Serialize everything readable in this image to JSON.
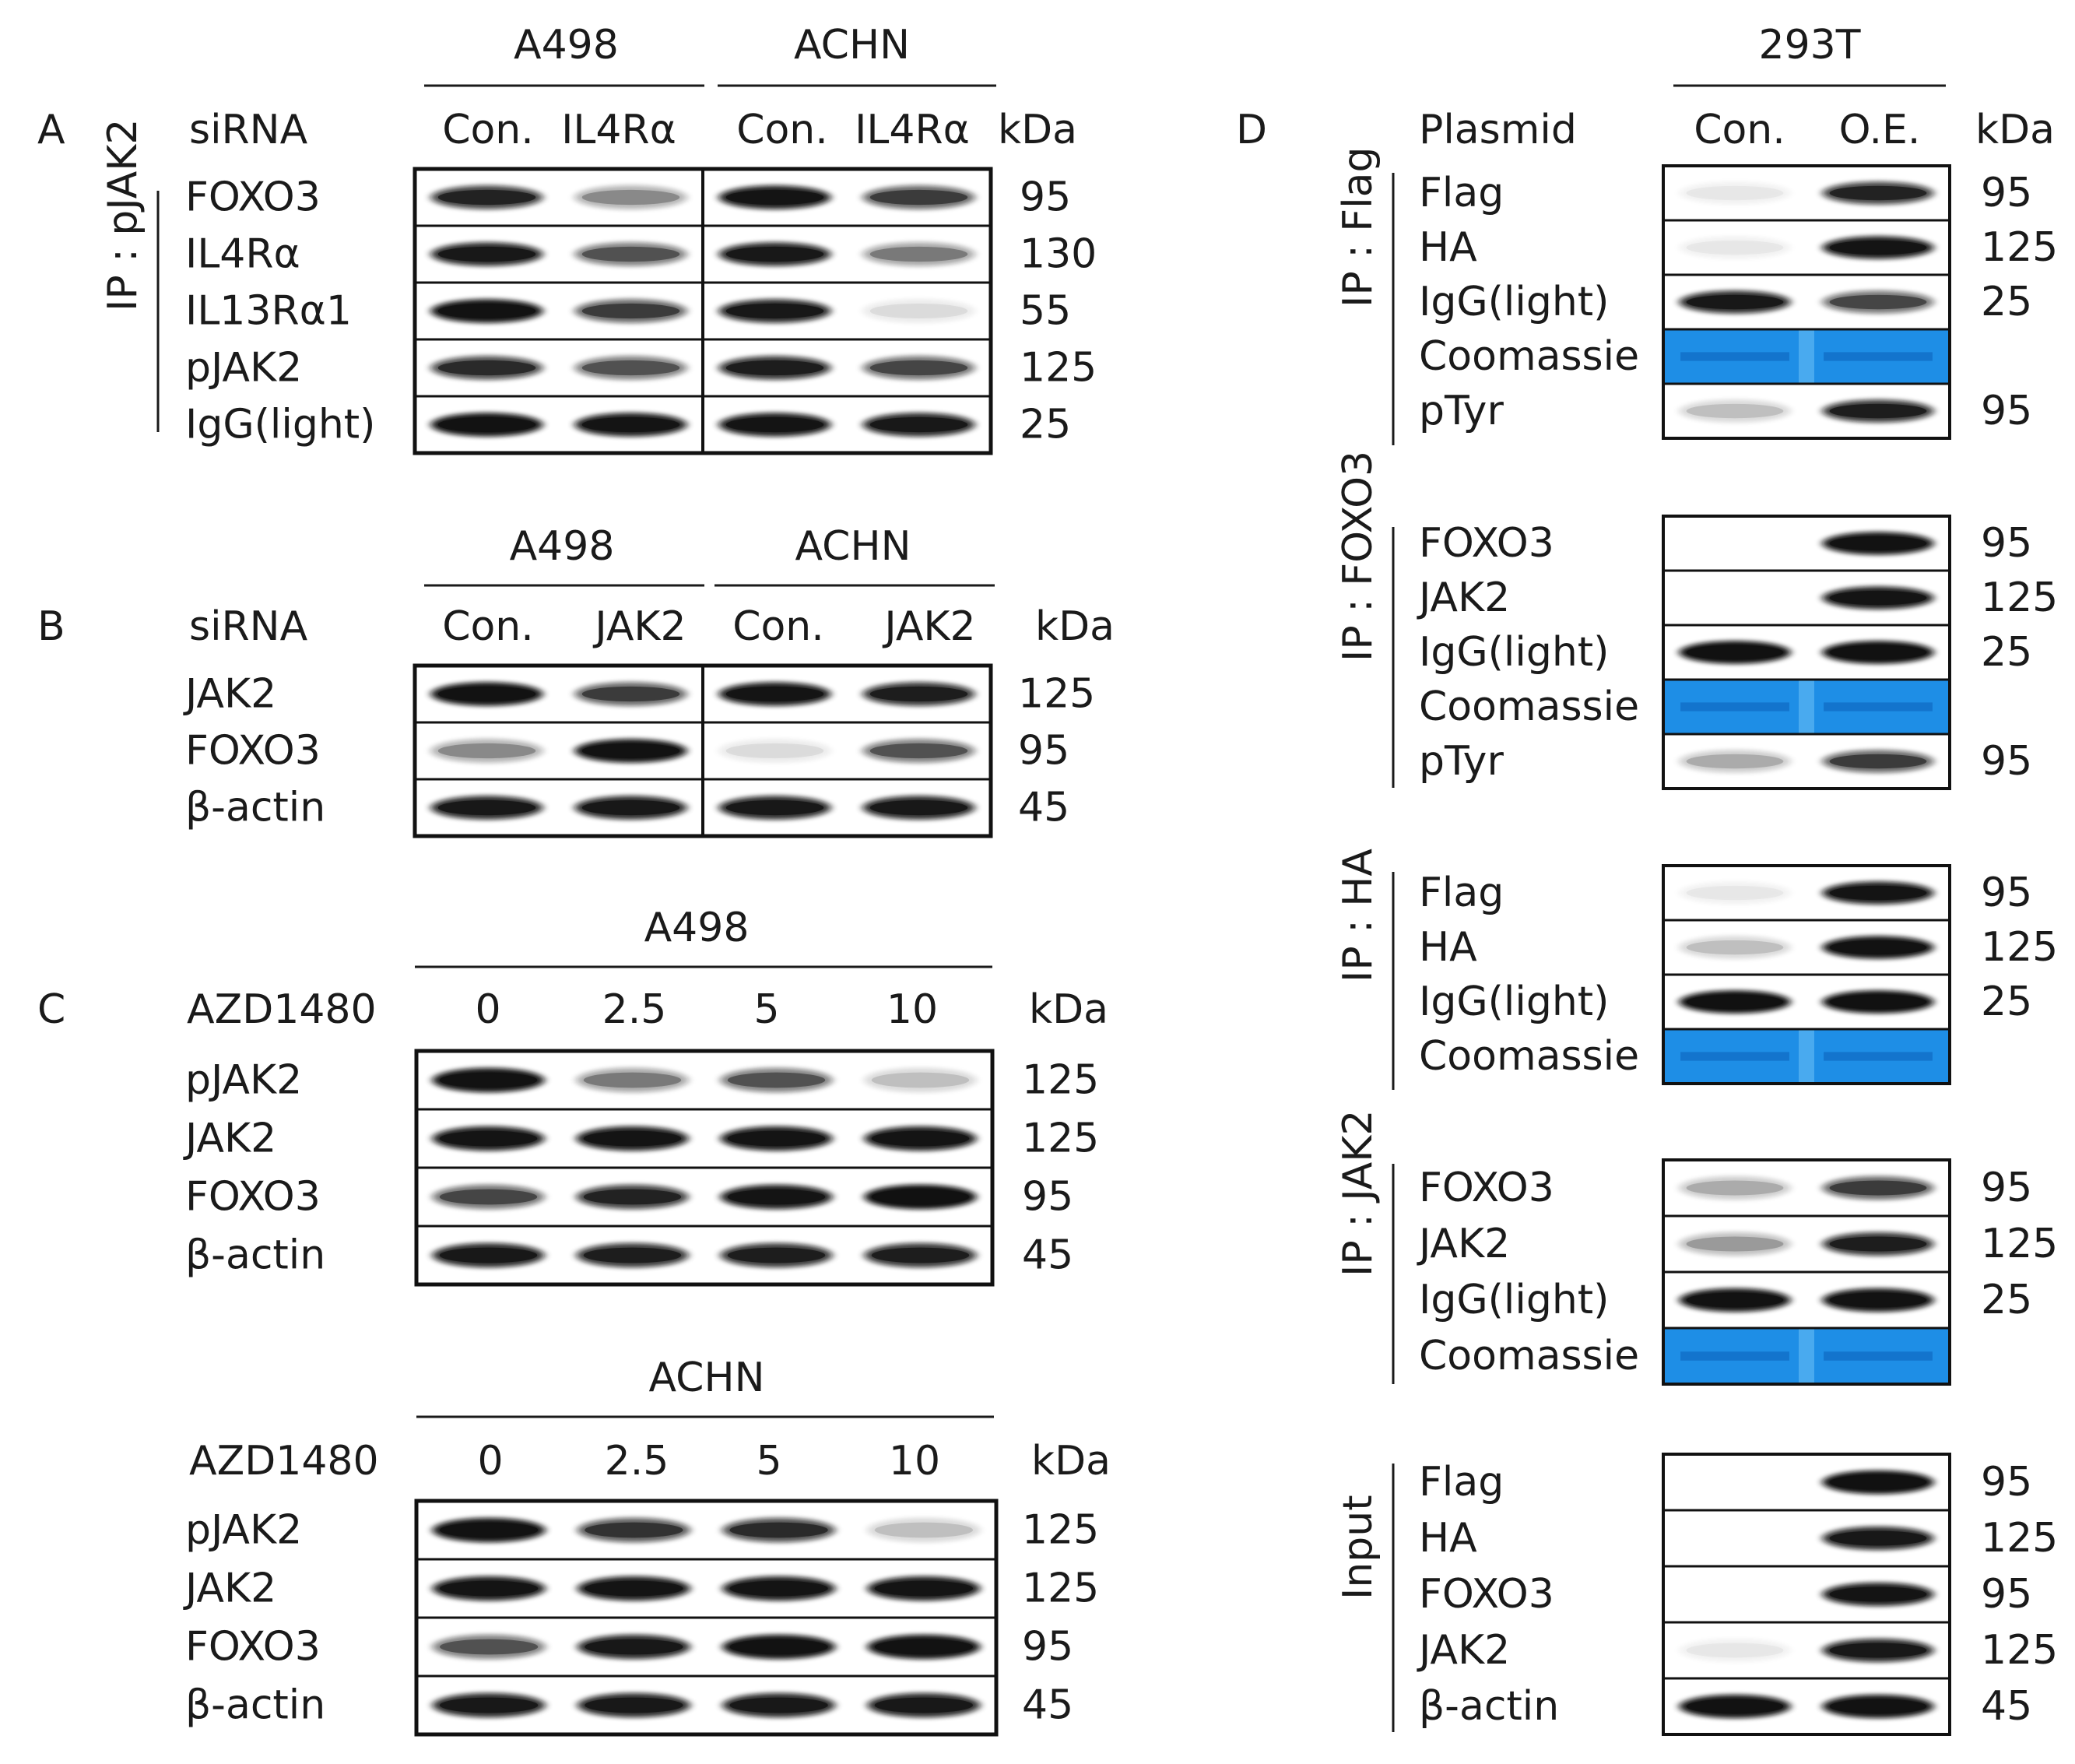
{
  "panels": {
    "A": {
      "letter": "A",
      "cells": [
        "A498",
        "ACHN"
      ],
      "treatment_label": "siRNA",
      "lanes": [
        "Con.",
        "IL4Rα",
        "Con.",
        "IL4Rα"
      ],
      "kda_header": "kDa",
      "ip_label": "IP : pJAK2",
      "rows": [
        {
          "label": "FOXO3",
          "kda": "95",
          "bands": [
            0.75,
            0.3,
            0.9,
            0.6
          ]
        },
        {
          "label": "IL4Rα",
          "kda": "130",
          "bands": [
            0.85,
            0.5,
            0.85,
            0.35
          ]
        },
        {
          "label": "IL13Rα1",
          "kda": "55",
          "bands": [
            0.95,
            0.6,
            0.85,
            0.08
          ]
        },
        {
          "label": "pJAK2",
          "kda": "125",
          "bands": [
            0.7,
            0.5,
            0.8,
            0.55
          ]
        },
        {
          "label": "IgG(light)",
          "kda": "25",
          "bands": [
            0.95,
            0.9,
            0.9,
            0.85
          ]
        }
      ]
    },
    "B": {
      "letter": "B",
      "cells": [
        "A498",
        "ACHN"
      ],
      "treatment_label": "siRNA",
      "lanes": [
        "Con.",
        "JAK2",
        "Con.",
        "JAK2"
      ],
      "kda_header": "kDa",
      "rows": [
        {
          "label": "JAK2",
          "kda": "125",
          "bands": [
            0.95,
            0.6,
            0.9,
            0.8
          ]
        },
        {
          "label": "FOXO3",
          "kda": "95",
          "bands": [
            0.3,
            0.95,
            0.08,
            0.5
          ]
        },
        {
          "label": "β-actin",
          "kda": "45",
          "bands": [
            0.85,
            0.85,
            0.85,
            0.85
          ]
        }
      ]
    },
    "C": {
      "letter": "C",
      "treatment_label": "AZD1480",
      "kda_header": "kDa",
      "blots": [
        {
          "cell": "A498",
          "lanes": [
            "0",
            "2.5",
            "5",
            "10"
          ],
          "rows": [
            {
              "label": "pJAK2",
              "kda": "125",
              "bands": [
                0.95,
                0.35,
                0.5,
                0.15
              ]
            },
            {
              "label": "JAK2",
              "kda": "125",
              "bands": [
                0.9,
                0.9,
                0.9,
                0.9
              ]
            },
            {
              "label": "FOXO3",
              "kda": "95",
              "bands": [
                0.55,
                0.75,
                0.9,
                0.98
              ]
            },
            {
              "label": "β-actin",
              "kda": "45",
              "bands": [
                0.85,
                0.8,
                0.8,
                0.8
              ]
            }
          ]
        },
        {
          "cell": "ACHN",
          "lanes": [
            "0",
            "2.5",
            "5",
            "10"
          ],
          "rows": [
            {
              "label": "pJAK2",
              "kda": "125",
              "bands": [
                0.95,
                0.65,
                0.7,
                0.15
              ]
            },
            {
              "label": "JAK2",
              "kda": "125",
              "bands": [
                0.9,
                0.9,
                0.9,
                0.9
              ]
            },
            {
              "label": "FOXO3",
              "kda": "95",
              "bands": [
                0.5,
                0.85,
                0.95,
                0.95
              ]
            },
            {
              "label": "β-actin",
              "kda": "45",
              "bands": [
                0.85,
                0.85,
                0.85,
                0.85
              ]
            }
          ]
        }
      ]
    },
    "D": {
      "letter": "D",
      "cell": "293T",
      "treatment_label": "Plasmid",
      "lanes": [
        "Con.",
        "O.E."
      ],
      "kda_header": "kDa",
      "blocks": [
        {
          "side_label": "IP : Flag",
          "rows": [
            {
              "label": "Flag",
              "kda": "95",
              "bands": [
                0.05,
                0.75
              ]
            },
            {
              "label": "HA",
              "kda": "125",
              "bands": [
                0.05,
                0.9
              ]
            },
            {
              "label": "IgG(light)",
              "kda": "25",
              "bands": [
                0.85,
                0.55
              ]
            },
            {
              "label": "Coomassie",
              "kda": "",
              "coomassie": true
            },
            {
              "label": "pTyr",
              "kda": "95",
              "bands": [
                0.15,
                0.8
              ]
            }
          ]
        },
        {
          "side_label": "IP : FOXO3",
          "rows": [
            {
              "label": "FOXO3",
              "kda": "95",
              "bands": [
                0.0,
                0.95
              ]
            },
            {
              "label": "JAK2",
              "kda": "125",
              "bands": [
                0.0,
                0.9
              ]
            },
            {
              "label": "IgG(light)",
              "kda": "25",
              "bands": [
                0.98,
                0.98
              ]
            },
            {
              "label": "Coomassie",
              "kda": "",
              "coomassie": true
            },
            {
              "label": "pTyr",
              "kda": "95",
              "bands": [
                0.2,
                0.6
              ]
            }
          ]
        },
        {
          "side_label": "IP : HA",
          "rows": [
            {
              "label": "Flag",
              "kda": "95",
              "bands": [
                0.05,
                0.9
              ]
            },
            {
              "label": "HA",
              "kda": "125",
              "bands": [
                0.15,
                0.95
              ]
            },
            {
              "label": "IgG(light)",
              "kda": "25",
              "bands": [
                0.98,
                0.98
              ]
            },
            {
              "label": "Coomassie",
              "kda": "",
              "coomassie": true
            }
          ]
        },
        {
          "side_label": "IP : JAK2",
          "rows": [
            {
              "label": "FOXO3",
              "kda": "95",
              "bands": [
                0.2,
                0.6
              ]
            },
            {
              "label": "JAK2",
              "kda": "125",
              "bands": [
                0.25,
                0.8
              ]
            },
            {
              "label": "IgG(light)",
              "kda": "25",
              "bands": [
                0.95,
                0.95
              ]
            },
            {
              "label": "Coomassie",
              "kda": "",
              "coomassie": true
            }
          ]
        },
        {
          "side_label": "Input",
          "rows": [
            {
              "label": "Flag",
              "kda": "95",
              "bands": [
                0.0,
                0.98
              ]
            },
            {
              "label": "HA",
              "kda": "125",
              "bands": [
                0.0,
                0.85
              ]
            },
            {
              "label": "FOXO3",
              "kda": "95",
              "bands": [
                0.0,
                0.9
              ]
            },
            {
              "label": "JAK2",
              "kda": "125",
              "bands": [
                0.05,
                0.85
              ]
            },
            {
              "label": "β-actin",
              "kda": "45",
              "bands": [
                0.95,
                0.95
              ]
            }
          ]
        }
      ]
    }
  },
  "colors": {
    "text": "#1a1a1a",
    "frame": "#111111",
    "band": "#111111",
    "coomassie_blue": "#1e8ee6",
    "coomassie_light": "#5bb6f2"
  }
}
